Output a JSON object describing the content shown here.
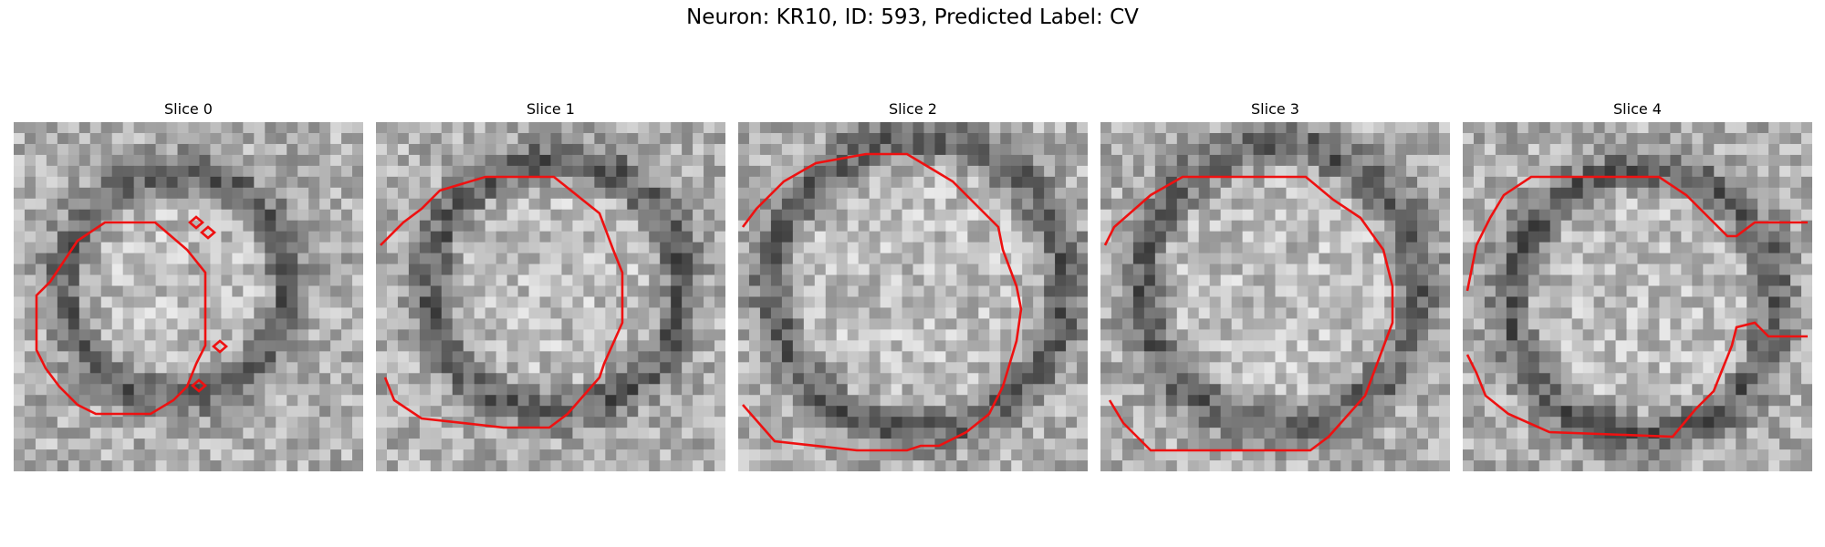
{
  "figure": {
    "title": "Neuron: KR10, ID: 593, Predicted Label: CV",
    "contour_color": "#ee1111"
  },
  "panels": [
    {
      "title": "Slice 0",
      "image": "grayscale EM slice with red contour outlines",
      "seed": 11
    },
    {
      "title": "Slice 1",
      "image": "grayscale EM slice with red contour outline",
      "seed": 23
    },
    {
      "title": "Slice 2",
      "image": "grayscale EM slice with red contour outline",
      "seed": 37
    },
    {
      "title": "Slice 3",
      "image": "grayscale EM slice with red contour outline",
      "seed": 51
    },
    {
      "title": "Slice 4",
      "image": "grayscale EM slice with red contour outlines",
      "seed": 67
    }
  ]
}
